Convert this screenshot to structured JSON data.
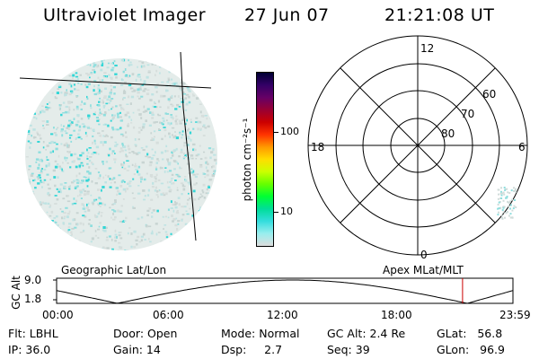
{
  "header": {
    "title": "Ultraviolet Imager",
    "date": "27 Jun 07",
    "time": "21:21:08 UT"
  },
  "geo_panel": {
    "label": "Geographic Lat/Lon"
  },
  "apex_panel": {
    "label": "Apex MLat/MLT",
    "mlt_labels": {
      "top": "12",
      "left": "18",
      "right": "6",
      "bottom": "0"
    },
    "lat_labels": [
      "60",
      "70",
      "80"
    ]
  },
  "colorbar": {
    "unit_label": "photon cm⁻²s⁻¹",
    "ticks": [
      "100",
      "10"
    ],
    "colors": [
      "#000033",
      "#330066",
      "#660066",
      "#990033",
      "#cc0000",
      "#ff3300",
      "#ff9900",
      "#ffdd00",
      "#ccff00",
      "#66ff00",
      "#00ff33",
      "#00dd99",
      "#33dddd",
      "#99eeee",
      "#dddddd"
    ]
  },
  "altitude_plot": {
    "ylabel": "GC Alt",
    "yticks": [
      "9.0",
      "1.8"
    ],
    "xticks": [
      "00:00",
      "06:00",
      "12:00",
      "18:00",
      "23:59"
    ],
    "marker_color": "#cc0000",
    "marker_time_hours": 21.35
  },
  "info": {
    "flt": "Flt: LBHL",
    "ip": "IP: 36.0",
    "door": "Door: Open",
    "gain": "Gain: 14",
    "mode": "Mode: Normal",
    "dsp": "Dsp:     2.7",
    "gcalt": "GC Alt: 2.4 Re",
    "seq": "Seq: 39",
    "glat": "GLat:   56.8",
    "glon": "GLon:   96.9"
  }
}
